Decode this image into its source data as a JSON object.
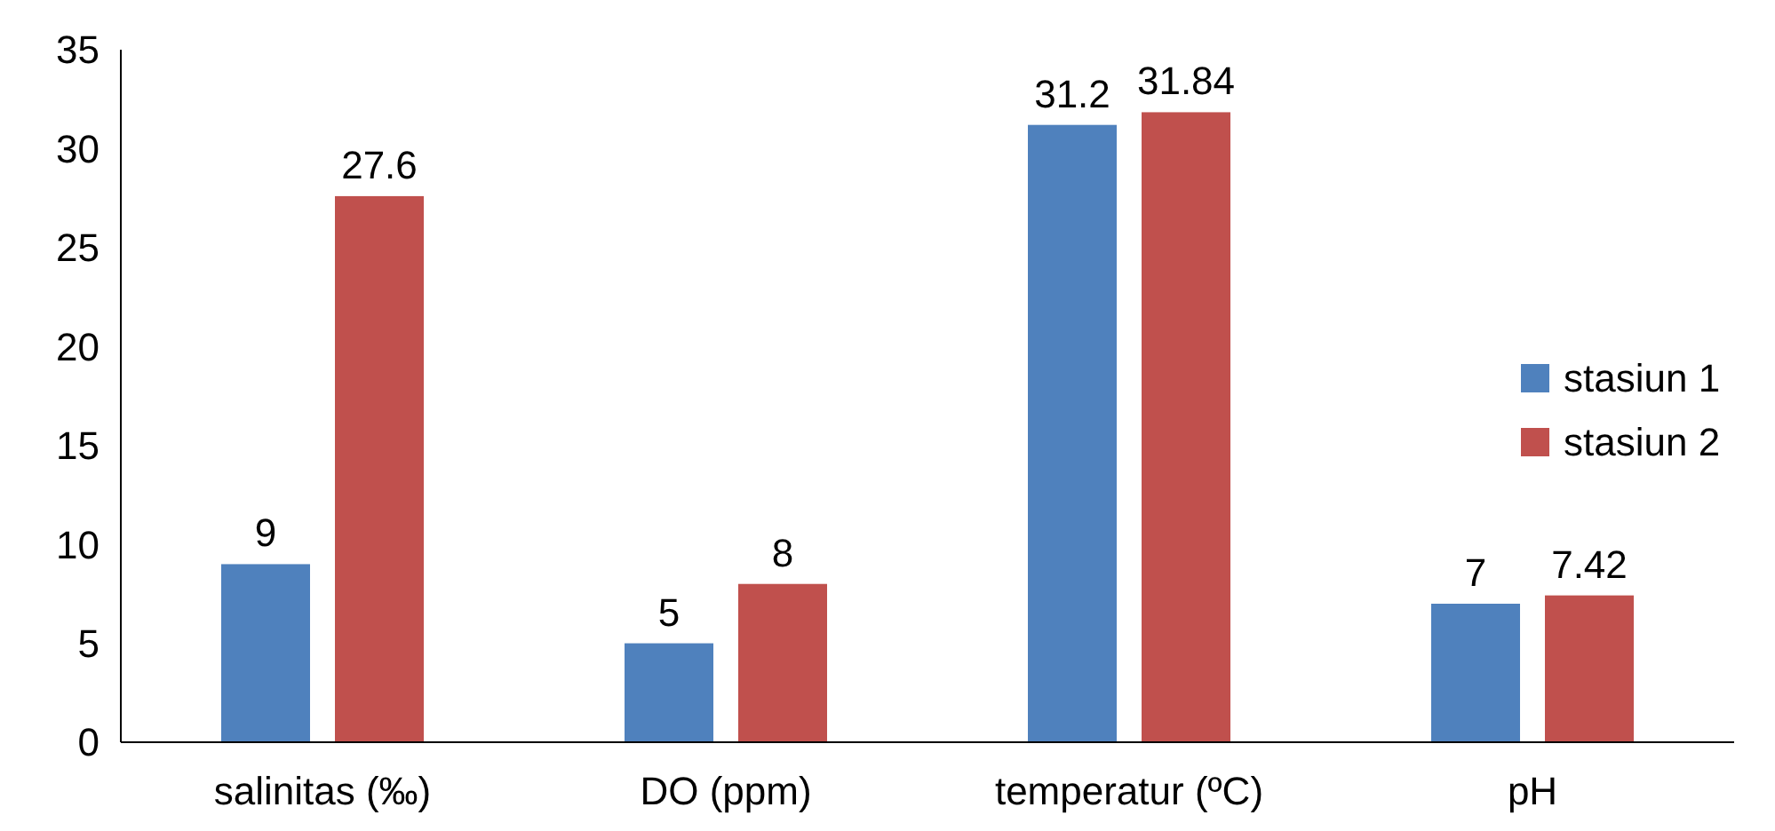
{
  "chart_data": {
    "type": "bar",
    "categories": [
      "salinitas (‰)",
      "DO (ppm)",
      "temperatur (ºC)",
      "pH"
    ],
    "series": [
      {
        "name": "stasiun 1",
        "color": "#4f81bd",
        "values": [
          9,
          5,
          31.2,
          7
        ]
      },
      {
        "name": "stasiun 2",
        "color": "#c0504d",
        "values": [
          27.6,
          8,
          31.84,
          7.42
        ]
      }
    ],
    "ylim": [
      0,
      35
    ],
    "yticks": [
      0,
      5,
      10,
      15,
      20,
      25,
      30,
      35
    ],
    "data_labels": true,
    "legend": "right",
    "grid": false
  }
}
